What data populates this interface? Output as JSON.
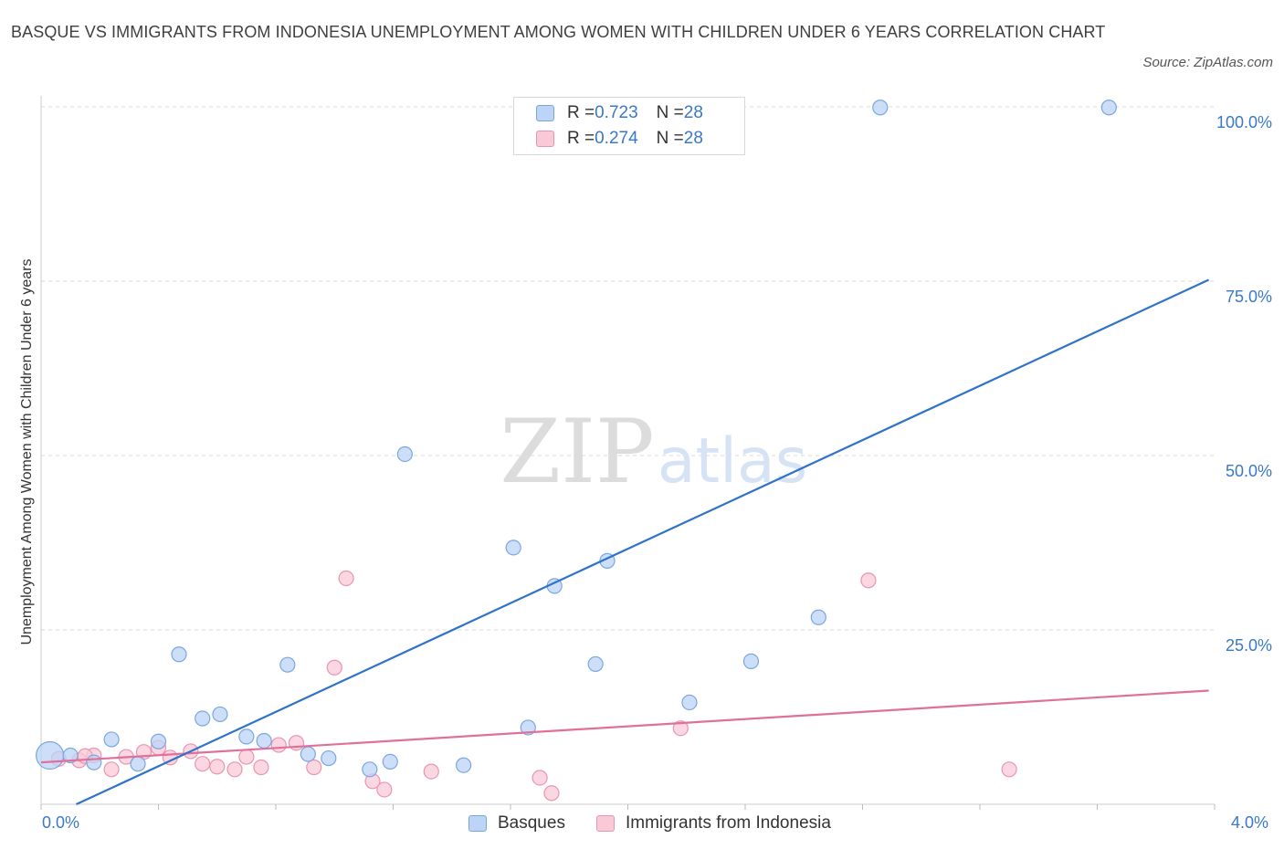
{
  "title": "BASQUE VS IMMIGRANTS FROM INDONESIA UNEMPLOYMENT AMONG WOMEN WITH CHILDREN UNDER 6 YEARS CORRELATION CHART",
  "source": "Source: ZipAtlas.com",
  "watermark": {
    "zip": "ZIP",
    "atlas": "atlas"
  },
  "legend_top": [
    {
      "r_label": "R = ",
      "r_value": "0.723",
      "n_label": "N = ",
      "n_value": "28"
    },
    {
      "r_label": "R = ",
      "r_value": "0.274",
      "n_label": "N = ",
      "n_value": "28"
    }
  ],
  "colors": {
    "basque_fill": "#bcd4f5",
    "basque_stroke": "#7aa6e0",
    "basque_line": "#2f72c9",
    "indo_fill": "#f9c9d8",
    "indo_stroke": "#e895b0",
    "indo_line": "#e0709a",
    "grid": "#d9d9d9",
    "axis_text": "#3a78c9"
  },
  "chart_data": {
    "type": "scatter",
    "title": "BASQUE VS IMMIGRANTS FROM INDONESIA UNEMPLOYMENT AMONG WOMEN WITH CHILDREN UNDER 6 YEARS CORRELATION CHART",
    "xlabel": "",
    "ylabel": "Unemployment Among Women with Children Under 6 years",
    "xlim": [
      0,
      4.0
    ],
    "ylim": [
      0,
      100
    ],
    "x_tick_labels": [
      "0.0%",
      "4.0%"
    ],
    "y_tick_labels": [
      "25.0%",
      "50.0%",
      "75.0%",
      "100.0%"
    ],
    "y_ticks": [
      25,
      50,
      75,
      100
    ],
    "grid": true,
    "legend_position": "bottom",
    "series": [
      {
        "name": "Basques",
        "r": 0.723,
        "n": 28,
        "trend": {
          "x": [
            0.12,
            3.98
          ],
          "y": [
            0.0,
            75.2
          ]
        },
        "points": [
          {
            "x": 0.03,
            "y": 7.0,
            "big": true
          },
          {
            "x": 0.1,
            "y": 7.0
          },
          {
            "x": 0.18,
            "y": 6.0
          },
          {
            "x": 0.24,
            "y": 9.3
          },
          {
            "x": 0.33,
            "y": 5.8
          },
          {
            "x": 0.4,
            "y": 9.0
          },
          {
            "x": 0.47,
            "y": 21.5
          },
          {
            "x": 0.55,
            "y": 12.3
          },
          {
            "x": 0.61,
            "y": 12.9
          },
          {
            "x": 0.7,
            "y": 9.7
          },
          {
            "x": 0.76,
            "y": 9.1
          },
          {
            "x": 0.84,
            "y": 20.0
          },
          {
            "x": 0.91,
            "y": 7.2
          },
          {
            "x": 0.98,
            "y": 6.6
          },
          {
            "x": 1.12,
            "y": 5.0
          },
          {
            "x": 1.19,
            "y": 6.1
          },
          {
            "x": 1.24,
            "y": 50.2
          },
          {
            "x": 1.44,
            "y": 5.6
          },
          {
            "x": 1.61,
            "y": 36.8
          },
          {
            "x": 1.66,
            "y": 11.0
          },
          {
            "x": 1.75,
            "y": 31.3
          },
          {
            "x": 1.89,
            "y": 20.1
          },
          {
            "x": 1.93,
            "y": 34.9
          },
          {
            "x": 2.21,
            "y": 14.6
          },
          {
            "x": 2.42,
            "y": 20.5
          },
          {
            "x": 2.65,
            "y": 26.8
          },
          {
            "x": 2.86,
            "y": 99.9
          },
          {
            "x": 3.64,
            "y": 99.9
          }
        ]
      },
      {
        "name": "Immigrants from Indonesia",
        "r": 0.274,
        "n": 28,
        "trend": {
          "x": [
            0.0,
            3.98
          ],
          "y": [
            6.0,
            16.3
          ]
        },
        "points": [
          {
            "x": 0.06,
            "y": 6.5
          },
          {
            "x": 0.13,
            "y": 6.3
          },
          {
            "x": 0.18,
            "y": 7.0
          },
          {
            "x": 0.24,
            "y": 5.0
          },
          {
            "x": 0.29,
            "y": 6.8
          },
          {
            "x": 0.35,
            "y": 7.5
          },
          {
            "x": 0.4,
            "y": 8.1
          },
          {
            "x": 0.44,
            "y": 6.7
          },
          {
            "x": 0.51,
            "y": 7.6
          },
          {
            "x": 0.55,
            "y": 5.8
          },
          {
            "x": 0.6,
            "y": 5.4
          },
          {
            "x": 0.66,
            "y": 5.0
          },
          {
            "x": 0.7,
            "y": 6.8
          },
          {
            "x": 0.75,
            "y": 5.3
          },
          {
            "x": 0.81,
            "y": 8.5
          },
          {
            "x": 0.87,
            "y": 8.8
          },
          {
            "x": 0.93,
            "y": 5.3
          },
          {
            "x": 1.0,
            "y": 19.6
          },
          {
            "x": 1.04,
            "y": 32.4
          },
          {
            "x": 1.13,
            "y": 3.3
          },
          {
            "x": 1.17,
            "y": 2.1
          },
          {
            "x": 1.33,
            "y": 4.7
          },
          {
            "x": 1.7,
            "y": 3.8
          },
          {
            "x": 1.74,
            "y": 1.6
          },
          {
            "x": 2.18,
            "y": 10.9
          },
          {
            "x": 2.82,
            "y": 32.1
          },
          {
            "x": 3.3,
            "y": 5.0
          },
          {
            "x": 0.15,
            "y": 6.9
          }
        ]
      }
    ]
  }
}
